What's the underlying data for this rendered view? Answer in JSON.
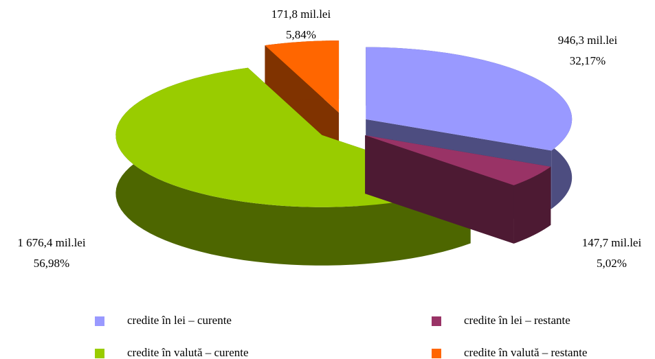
{
  "chart_data": {
    "type": "pie3d",
    "categories": [
      "credite în lei – curente",
      "credite în lei – restante",
      "credite în valută – curente",
      "credite în valută – restante"
    ],
    "values": [
      32.17,
      5.02,
      56.98,
      5.84
    ],
    "value_labels": [
      "32,17%",
      "5,02%",
      "56,98%",
      "5,84%"
    ],
    "amounts": [
      946.3,
      147.7,
      1676.4,
      171.8
    ],
    "amount_labels": [
      "946,3 mil.lei",
      "147,7 mil.lei",
      "1 676,4 mil.lei",
      "171,8 mil.lei"
    ],
    "colors": [
      "#9999ff",
      "#993366",
      "#99cc00",
      "#ff6600"
    ],
    "side_colors": [
      "#4d4d80",
      "#4d1a33",
      "#4d6600",
      "#803300"
    ],
    "legend": "bottom"
  }
}
